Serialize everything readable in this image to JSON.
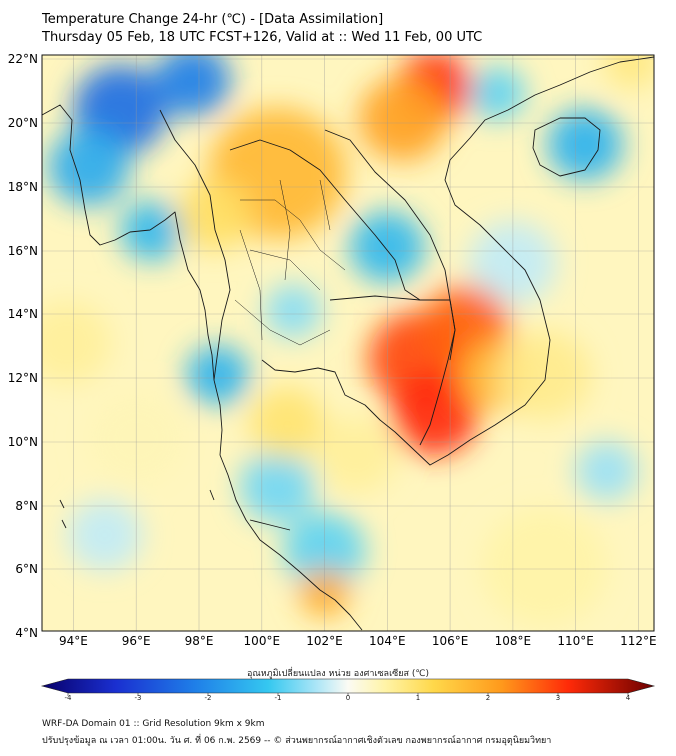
{
  "title": {
    "line1": "Temperature Change 24-hr (℃) - [Data Assimilation]",
    "line2": "Thursday 05 Feb, 18 UTC FCST+126, Valid at :: Wed 11 Feb, 00 UTC"
  },
  "map": {
    "lat_labels": [
      "22°N",
      "20°N",
      "18°N",
      "16°N",
      "14°N",
      "12°N",
      "10°N",
      "8°N",
      "6°N",
      "4°N"
    ],
    "lon_labels": [
      "94°E",
      "96°E",
      "98°E",
      "100°E",
      "102°E",
      "104°E",
      "106°E",
      "108°E",
      "110°E",
      "112°E"
    ],
    "lat_range": [
      4,
      22
    ],
    "lon_range": [
      93,
      112.5
    ],
    "blobs": [
      {
        "lon": 95.5,
        "lat": 20.3,
        "r": 1.5,
        "v": -2.2
      },
      {
        "lon": 97.8,
        "lat": 21.2,
        "r": 1.2,
        "v": -2.0
      },
      {
        "lon": 94.5,
        "lat": 18.5,
        "r": 1.3,
        "v": -1.4
      },
      {
        "lon": 96.5,
        "lat": 16.5,
        "r": 1.0,
        "v": -1.2
      },
      {
        "lon": 98.6,
        "lat": 12.0,
        "r": 1.0,
        "v": -1.3
      },
      {
        "lon": 101.0,
        "lat": 14.0,
        "r": 0.9,
        "v": -0.6
      },
      {
        "lon": 104.0,
        "lat": 16.0,
        "r": 1.2,
        "v": -1.2
      },
      {
        "lon": 107.5,
        "lat": 20.8,
        "r": 0.9,
        "v": -0.8
      },
      {
        "lon": 110.3,
        "lat": 19.2,
        "r": 1.2,
        "v": -1.3
      },
      {
        "lon": 100.5,
        "lat": 8.5,
        "r": 1.2,
        "v": -0.7
      },
      {
        "lon": 102.0,
        "lat": 6.5,
        "r": 1.3,
        "v": -0.8
      },
      {
        "lon": 108.0,
        "lat": 15.5,
        "r": 1.4,
        "v": -0.3
      },
      {
        "lon": 111.0,
        "lat": 9.0,
        "r": 1.0,
        "v": -0.5
      },
      {
        "lon": 95.0,
        "lat": 7.0,
        "r": 1.2,
        "v": -0.3
      },
      {
        "lon": 105.5,
        "lat": 21.0,
        "r": 1.2,
        "v": 2.8
      },
      {
        "lon": 104.5,
        "lat": 20.0,
        "r": 1.4,
        "v": 1.9
      },
      {
        "lon": 100.5,
        "lat": 18.3,
        "r": 2.2,
        "v": 1.6
      },
      {
        "lon": 98.5,
        "lat": 17.0,
        "r": 1.2,
        "v": 1.0
      },
      {
        "lon": 105.0,
        "lat": 12.5,
        "r": 1.6,
        "v": 2.6
      },
      {
        "lon": 106.5,
        "lat": 13.5,
        "r": 1.4,
        "v": 2.4
      },
      {
        "lon": 105.5,
        "lat": 10.8,
        "r": 1.4,
        "v": 2.8
      },
      {
        "lon": 107.5,
        "lat": 12.0,
        "r": 1.2,
        "v": 1.6
      },
      {
        "lon": 102.0,
        "lat": 5.2,
        "r": 0.8,
        "v": 1.8
      },
      {
        "lon": 100.8,
        "lat": 10.5,
        "r": 1.2,
        "v": 0.9
      },
      {
        "lon": 103.0,
        "lat": 9.5,
        "r": 1.3,
        "v": 0.6
      },
      {
        "lon": 109.0,
        "lat": 12.0,
        "r": 1.5,
        "v": 0.7
      },
      {
        "lon": 111.8,
        "lat": 21.8,
        "r": 0.9,
        "v": 0.8
      },
      {
        "lon": 93.8,
        "lat": 13.0,
        "r": 1.4,
        "v": 0.6
      },
      {
        "lon": 96.0,
        "lat": 10.0,
        "r": 1.6,
        "v": 0.4
      },
      {
        "lon": 109.0,
        "lat": 6.0,
        "r": 2.0,
        "v": 0.5
      }
    ]
  },
  "colorbar": {
    "title": "อุณหภูมิเปลี่ยนแปลง หน่วย องศาเซลเซียส (℃)",
    "min": -4,
    "max": 4,
    "ticks": [
      "-4",
      "-3",
      "-2",
      "-1",
      "0",
      "1",
      "2",
      "3",
      "4"
    ]
  },
  "footer": {
    "line1": "WRF-DA Domain 01 :: Grid Resolution 9km x 9km",
    "line2": "ปรับปรุงข้อมูล ณ เวลา 01:00น. วัน ศ. ที่ 06 ก.พ. 2569 -- © ส่วนพยากรณ์อากาศเชิงตัวเลข กองพยากรณ์อากาศ กรมอุตุนิยมวิทยา"
  }
}
